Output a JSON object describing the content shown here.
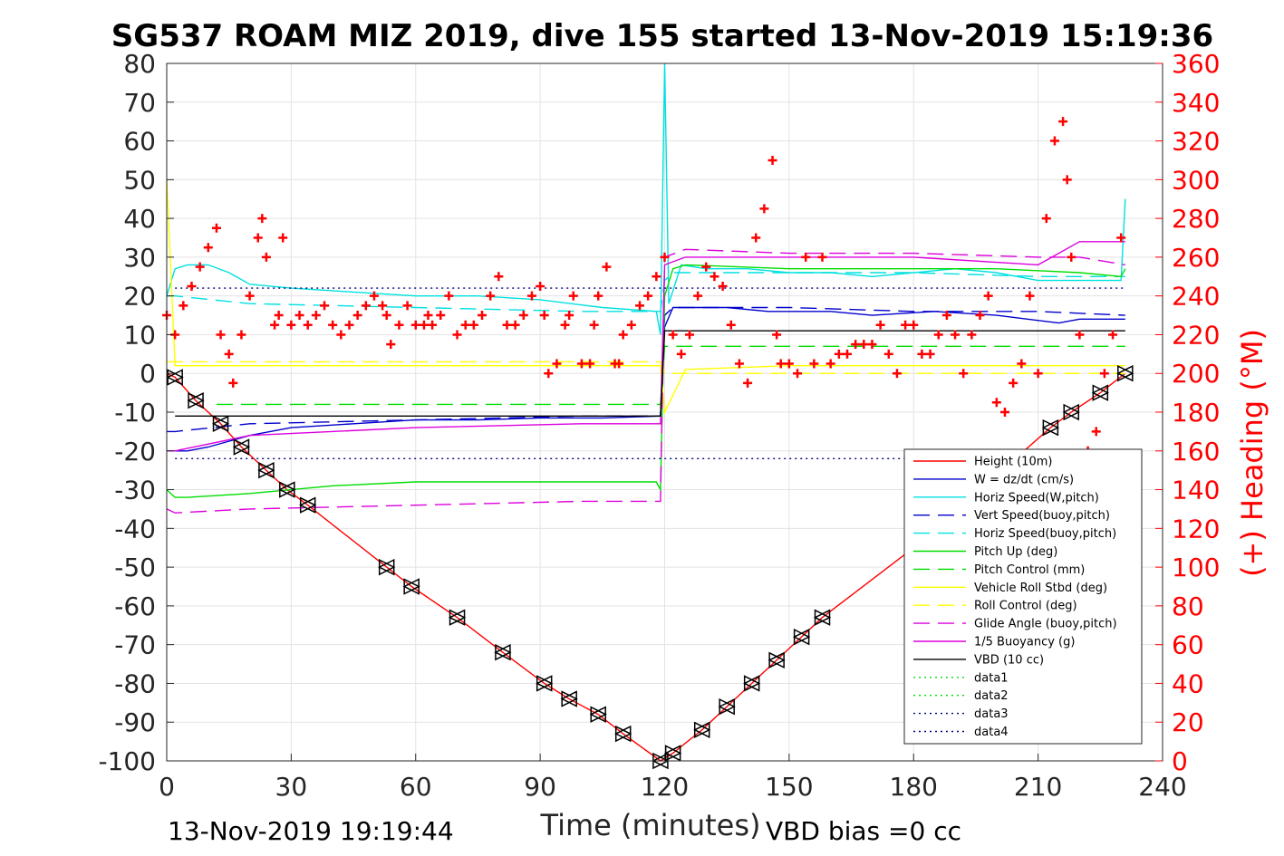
{
  "chart_data": {
    "type": "line",
    "title": "SG537 ROAM MIZ 2019, dive 155 started 13-Nov-2019 15:19:36",
    "xlabel": "Time (minutes)",
    "ylabel_right": "(+) Heading (°M)",
    "xlim": [
      0,
      240
    ],
    "ylim": [
      -100,
      80
    ],
    "ylim_right": [
      0,
      360
    ],
    "x_ticks": [
      0,
      30,
      60,
      90,
      120,
      150,
      180,
      210,
      240
    ],
    "y_ticks": [
      -100,
      -90,
      -80,
      -70,
      -60,
      -50,
      -40,
      -30,
      -20,
      -10,
      0,
      10,
      20,
      30,
      40,
      50,
      60,
      70,
      80
    ],
    "y_ticks_right": [
      0,
      20,
      40,
      60,
      80,
      100,
      120,
      140,
      160,
      180,
      200,
      220,
      240,
      260,
      280,
      300,
      320,
      340,
      360
    ],
    "grid": true,
    "legend_position": "lower-right",
    "footer_left": "13-Nov-2019 19:19:44",
    "footer_right": "VBD bias =0 cc",
    "series": [
      {
        "name": "Height (10m)",
        "color": "#ff0000",
        "style": "solid",
        "x": [
          0,
          2,
          7,
          13,
          18,
          24,
          29,
          34,
          53,
          59,
          70,
          81,
          91,
          97,
          104,
          110,
          119,
          122,
          129,
          135,
          141,
          147,
          153,
          158,
          180,
          213,
          218,
          225,
          231
        ],
        "y": [
          0,
          -1,
          -7,
          -13,
          -19,
          -25,
          -30,
          -34,
          -50,
          -55,
          -63,
          -72,
          -80,
          -84,
          -88,
          -93,
          -100,
          -98,
          -92,
          -86,
          -80,
          -74,
          -68,
          -63,
          -45,
          -14,
          -10,
          -5,
          0
        ]
      },
      {
        "name": "W = dz/dt (cm/s)",
        "color": "#0000cc",
        "style": "solid",
        "x": [
          0,
          2,
          5,
          10,
          20,
          30,
          45,
          60,
          75,
          90,
          105,
          119,
          120,
          122,
          128,
          135,
          145,
          150,
          160,
          170,
          185,
          200,
          215,
          220,
          231
        ],
        "y": [
          -20,
          -20,
          -20,
          -19,
          -16,
          -14,
          -13,
          -12,
          -12,
          -11.5,
          -11.5,
          -11,
          12,
          17,
          17,
          17,
          16,
          16,
          16,
          15,
          16,
          15,
          13,
          14,
          14
        ]
      },
      {
        "name": "Horiz Speed(W,pitch)",
        "color": "#00e0e0",
        "style": "solid",
        "x": [
          0,
          2,
          5,
          10,
          15,
          20,
          30,
          45,
          60,
          75,
          90,
          105,
          118,
          119,
          120,
          121,
          124,
          130,
          140,
          150,
          160,
          170,
          180,
          190,
          200,
          210,
          220,
          230,
          231
        ],
        "y": [
          20,
          27,
          28,
          28,
          26,
          23,
          22,
          21,
          20,
          20,
          19,
          17,
          16,
          10,
          80,
          18,
          28,
          27,
          27,
          26,
          26,
          25,
          26,
          27,
          26,
          24,
          24,
          24,
          45
        ]
      },
      {
        "name": "Vert Speed(buoy,pitch)",
        "color": "#0000cc",
        "style": "dashed",
        "x": [
          0,
          2,
          20,
          60,
          100,
          119,
          120,
          122,
          150,
          180,
          210,
          231
        ],
        "y": [
          -15,
          -15,
          -13,
          -12,
          -11,
          -11,
          15,
          17,
          17,
          16,
          16,
          15
        ]
      },
      {
        "name": "Horiz Speed(buoy,pitch)",
        "color": "#00e0e0",
        "style": "dashed",
        "x": [
          0,
          2,
          20,
          60,
          100,
          119,
          120,
          122,
          150,
          180,
          210,
          231
        ],
        "y": [
          20,
          20,
          18,
          17,
          16,
          16,
          24,
          26,
          26,
          26,
          25,
          25
        ]
      },
      {
        "name": "Pitch Up (deg)",
        "color": "#00dd00",
        "style": "solid",
        "x": [
          0,
          2,
          5,
          20,
          40,
          60,
          80,
          100,
          118,
          119,
          120,
          122,
          125,
          150,
          180,
          200,
          220,
          230,
          231
        ],
        "y": [
          -30,
          -32,
          -32,
          -31,
          -29,
          -28,
          -28,
          -28,
          -28,
          -30,
          20,
          27,
          28,
          27,
          27,
          27,
          26,
          25,
          27
        ]
      },
      {
        "name": "Pitch Control (mm)",
        "color": "#00dd00",
        "style": "dashed",
        "x": [
          12,
          50,
          100,
          119,
          120,
          125,
          180,
          231
        ],
        "y": [
          -8,
          -8,
          -8,
          -8,
          7,
          7,
          7,
          7
        ]
      },
      {
        "name": "Vehicle Roll Stbd (deg)",
        "color": "#ffff00",
        "style": "solid",
        "x": [
          0,
          2,
          5,
          20,
          40,
          60,
          80,
          100,
          119,
          120,
          125,
          150,
          180,
          210,
          231
        ],
        "y": [
          50,
          2,
          2,
          2,
          2,
          2,
          2,
          2,
          2,
          -10,
          1,
          2,
          2,
          2,
          2
        ]
      },
      {
        "name": "Roll Control (deg)",
        "color": "#ffff00",
        "style": "dashed",
        "x": [
          0,
          2,
          20,
          60,
          100,
          119,
          120,
          125,
          180,
          231
        ],
        "y": [
          3,
          3,
          3,
          3,
          3,
          3,
          0,
          0,
          0,
          0
        ]
      },
      {
        "name": "Glide Angle (buoy,pitch)",
        "color": "#dd00dd",
        "style": "dashed",
        "x": [
          0,
          2,
          20,
          60,
          100,
          119,
          120,
          125,
          150,
          180,
          210,
          220,
          231
        ],
        "y": [
          -35,
          -36,
          -35,
          -34,
          -33,
          -33,
          30,
          32,
          31,
          31,
          30,
          30,
          28
        ]
      },
      {
        "name": "1/5 Buoyancy (g)",
        "color": "#dd00dd",
        "style": "solid",
        "x": [
          0,
          2,
          20,
          60,
          100,
          119,
          120,
          125,
          150,
          180,
          210,
          220,
          231
        ],
        "y": [
          -20,
          -20,
          -16,
          -14,
          -13,
          -13,
          28,
          30,
          30,
          30,
          28,
          34,
          34
        ]
      },
      {
        "name": "VBD (10 cc)",
        "color": "#000000",
        "style": "solid",
        "x": [
          2,
          119,
          120,
          231
        ],
        "y": [
          -11,
          -11,
          11,
          11
        ]
      },
      {
        "name": "data1",
        "color": "#00dd00",
        "style": "dotted",
        "x": [],
        "y": []
      },
      {
        "name": "data2",
        "color": "#00dd00",
        "style": "dotted",
        "x": [],
        "y": []
      },
      {
        "name": "data3",
        "color": "#000080",
        "style": "dotted",
        "x": [
          2,
          231
        ],
        "y": [
          22,
          22
        ]
      },
      {
        "name": "data4",
        "color": "#000080",
        "style": "dotted",
        "x": [
          2,
          231
        ],
        "y": [
          -22,
          -22
        ]
      }
    ],
    "heading_points": {
      "color": "#ff0000",
      "marker": "+",
      "x": [
        0,
        2,
        4,
        6,
        8,
        10,
        12,
        13,
        15,
        16,
        18,
        20,
        22,
        23,
        24,
        26,
        27,
        28,
        30,
        32,
        34,
        36,
        38,
        40,
        42,
        44,
        46,
        48,
        50,
        52,
        53,
        54,
        56,
        58,
        60,
        62,
        63,
        64,
        66,
        68,
        70,
        72,
        74,
        76,
        78,
        80,
        82,
        84,
        86,
        88,
        90,
        91,
        92,
        94,
        96,
        97,
        98,
        100,
        102,
        103,
        104,
        106,
        108,
        109,
        110,
        112,
        114,
        116,
        118,
        120,
        122,
        124,
        126,
        128,
        130,
        132,
        134,
        136,
        138,
        140,
        142,
        144,
        146,
        147,
        148,
        150,
        152,
        154,
        156,
        158,
        160,
        162,
        164,
        166,
        168,
        170,
        172,
        174,
        176,
        178,
        180,
        182,
        184,
        186,
        188,
        190,
        192,
        194,
        196,
        198,
        200,
        202,
        204,
        206,
        208,
        210,
        212,
        214,
        216,
        217,
        218,
        220,
        222,
        224,
        226,
        228,
        230
      ],
      "y": [
        230,
        220,
        235,
        245,
        255,
        265,
        275,
        220,
        210,
        195,
        220,
        240,
        270,
        280,
        260,
        225,
        230,
        270,
        225,
        230,
        225,
        230,
        235,
        225,
        220,
        225,
        230,
        235,
        240,
        235,
        230,
        215,
        225,
        235,
        225,
        225,
        230,
        225,
        230,
        240,
        220,
        225,
        225,
        230,
        240,
        250,
        225,
        225,
        230,
        240,
        245,
        230,
        200,
        205,
        225,
        230,
        240,
        205,
        205,
        225,
        240,
        255,
        205,
        205,
        220,
        225,
        235,
        240,
        250,
        260,
        220,
        210,
        220,
        240,
        255,
        250,
        245,
        225,
        205,
        195,
        270,
        285,
        310,
        220,
        205,
        205,
        200,
        260,
        205,
        260,
        205,
        210,
        210,
        215,
        215,
        215,
        225,
        210,
        200,
        225,
        225,
        210,
        210,
        220,
        230,
        220,
        200,
        220,
        230,
        240,
        185,
        180,
        195,
        205,
        240,
        200,
        280,
        320,
        330,
        300,
        260,
        220,
        160,
        170,
        200,
        220,
        270
      ]
    },
    "depth_markers": {
      "color": "#000000",
      "marker": "triangle",
      "x": [
        2,
        7,
        13,
        18,
        24,
        29,
        34,
        53,
        59,
        70,
        81,
        91,
        97,
        104,
        110,
        119,
        122,
        129,
        135,
        141,
        147,
        153,
        158,
        180,
        213,
        218,
        225,
        231
      ],
      "y": [
        -1,
        -7,
        -13,
        -19,
        -25,
        -30,
        -34,
        -50,
        -55,
        -63,
        -72,
        -80,
        -84,
        -88,
        -93,
        -100,
        -98,
        -92,
        -86,
        -80,
        -74,
        -68,
        -63,
        -45,
        -14,
        -10,
        -5,
        0
      ]
    }
  }
}
